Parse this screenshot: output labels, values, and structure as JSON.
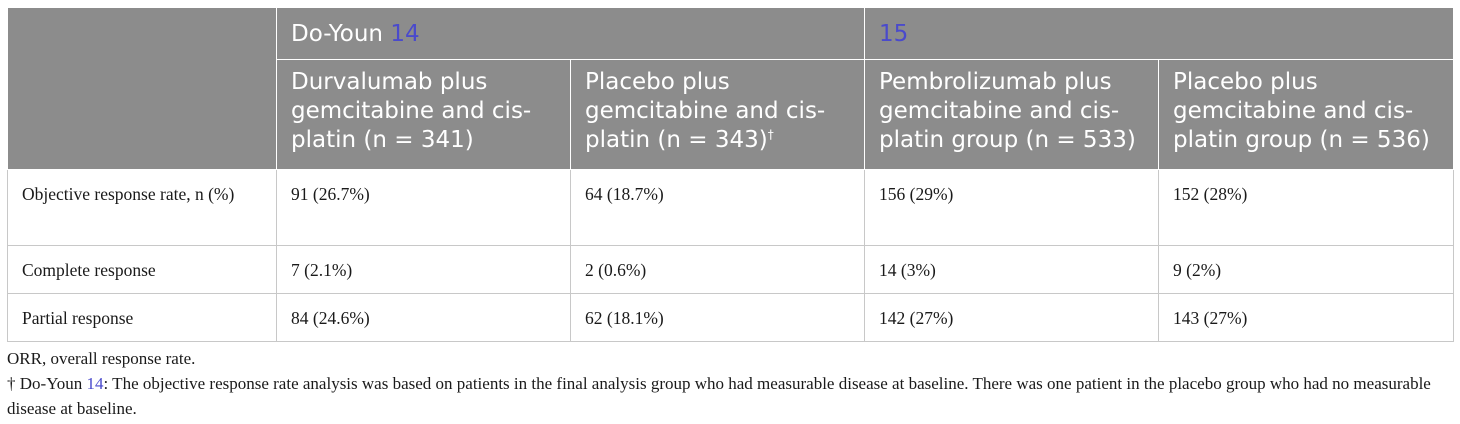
{
  "header": {
    "group1": {
      "name": "Do-Youn",
      "ref": "14"
    },
    "group2": {
      "ref": "15"
    },
    "columns": [
      {
        "label": "Durvalumab plus gemcitabine and cis-platin (n = 341)",
        "mark": ""
      },
      {
        "label": "Placebo plus gemcitabine and cis-platin (n = 343)",
        "mark": "†"
      },
      {
        "label": "Pembrolizumab plus gemcitabine and cis-platin group (n = 533)",
        "mark": ""
      },
      {
        "label": "Placebo plus gemcitabine and cis-platin group (n = 536)",
        "mark": ""
      }
    ]
  },
  "rows": [
    {
      "label": "Objective response rate, n (%)",
      "values": [
        "91 (26.7%)",
        "64 (18.7%)",
        "156 (29%)",
        "152 (28%)"
      ]
    },
    {
      "label": "Complete response",
      "values": [
        "7 (2.1%)",
        "2 (0.6%)",
        "14 (3%)",
        "9 (2%)"
      ]
    },
    {
      "label": "Partial response",
      "values": [
        "84 (24.6%)",
        "62 (18.1%)",
        "142 (27%)",
        "143 (27%)"
      ]
    }
  ],
  "footnotes": {
    "abbrev": "ORR, overall response rate.",
    "dagger_symbol": "†",
    "dagger_name": "Do-Youn",
    "dagger_ref": "14",
    "dagger_text": ": The objective response rate analysis was based on patients in the final analysis group who had measurable disease at baseline. There was one patient in the placebo group who had no measurable disease at baseline."
  }
}
